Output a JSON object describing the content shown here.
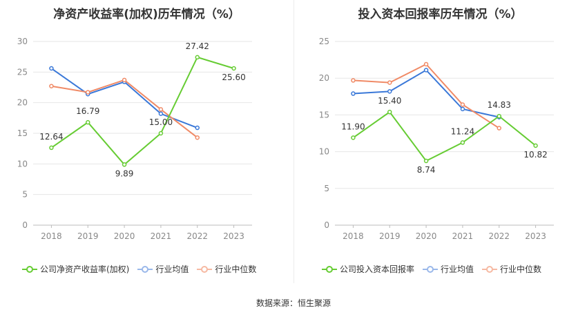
{
  "colors": {
    "company": "#66cc33",
    "industry_avg": "#3a78d8",
    "industry_median": "#f08a66",
    "grid": "#e6e6e6",
    "axis_text": "#888888",
    "label_text": "#333333"
  },
  "source_text": "数据来源：恒生聚源",
  "chart_data": [
    {
      "type": "line",
      "title": "净资产收益率(加权)历年情况（%）",
      "categories": [
        "2018",
        "2019",
        "2020",
        "2021",
        "2022",
        "2023"
      ],
      "ylim": [
        0,
        30
      ],
      "yticks": [
        0,
        5,
        10,
        15,
        20,
        25,
        30
      ],
      "grid": true,
      "legend_position": "bottom",
      "series": [
        {
          "name": "公司净资产收益率(加权)",
          "key": "company",
          "values": [
            12.64,
            16.79,
            9.89,
            15.0,
            27.42,
            25.6
          ],
          "labels": [
            "12.64",
            "16.79",
            "9.89",
            "15.00",
            "27.42",
            "25.60"
          ]
        },
        {
          "name": "行业均值",
          "key": "industry_avg",
          "values": [
            25.6,
            21.4,
            23.4,
            18.2,
            15.9,
            null
          ]
        },
        {
          "name": "行业中位数",
          "key": "industry_median",
          "values": [
            22.7,
            21.7,
            23.7,
            18.9,
            14.3,
            null
          ]
        }
      ]
    },
    {
      "type": "line",
      "title": "投入资本回报率历年情况（%）",
      "categories": [
        "2018",
        "2019",
        "2020",
        "2021",
        "2022",
        "2023"
      ],
      "ylim": [
        0,
        25
      ],
      "yticks": [
        0,
        5,
        10,
        15,
        20,
        25
      ],
      "grid": true,
      "legend_position": "bottom",
      "series": [
        {
          "name": "公司投入资本回报率",
          "key": "company",
          "values": [
            11.9,
            15.4,
            8.74,
            11.24,
            14.83,
            10.82
          ],
          "labels": [
            "11.90",
            "15.40",
            "8.74",
            "11.24",
            "14.83",
            "10.82"
          ]
        },
        {
          "name": "行业均值",
          "key": "industry_avg",
          "values": [
            17.9,
            18.2,
            21.1,
            15.8,
            14.7,
            null
          ]
        },
        {
          "name": "行业中位数",
          "key": "industry_median",
          "values": [
            19.7,
            19.4,
            21.9,
            16.4,
            13.2,
            null
          ]
        }
      ]
    }
  ]
}
